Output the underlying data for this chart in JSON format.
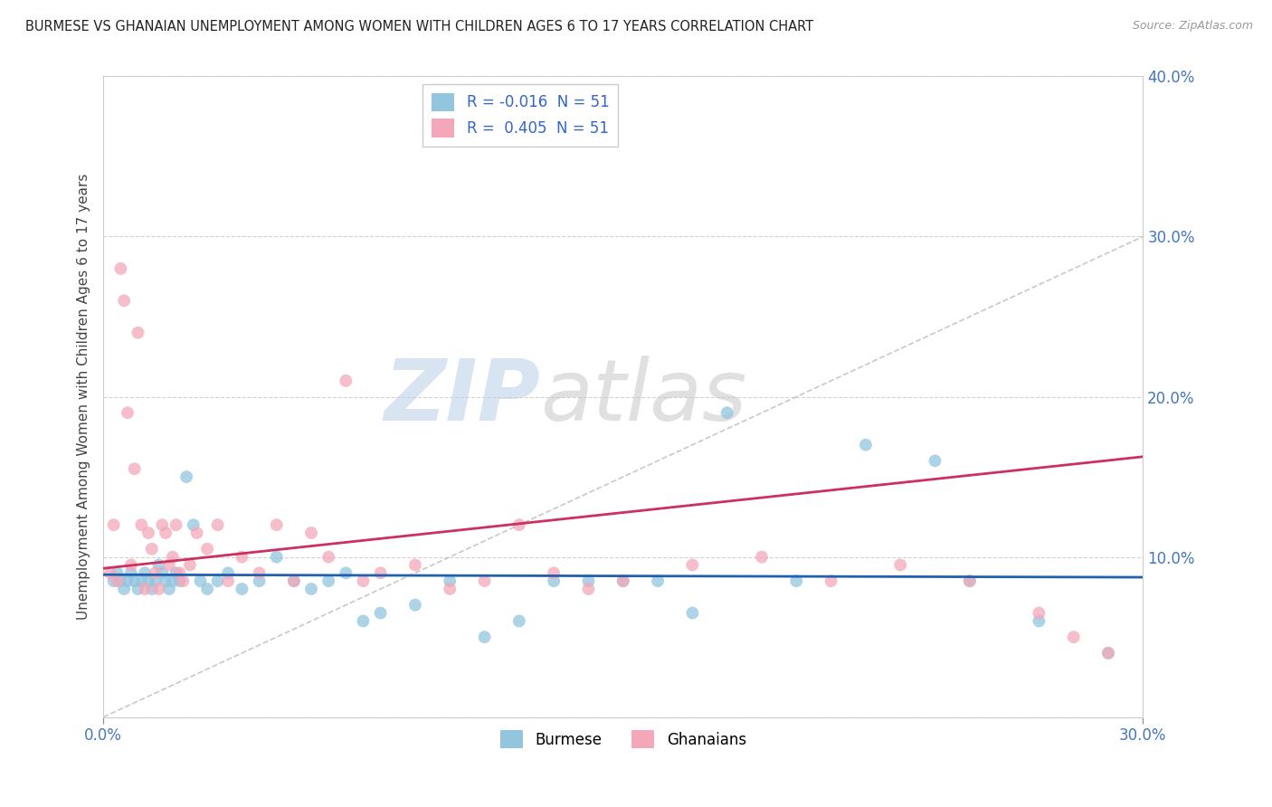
{
  "title": "BURMESE VS GHANAIAN UNEMPLOYMENT AMONG WOMEN WITH CHILDREN AGES 6 TO 17 YEARS CORRELATION CHART",
  "source": "Source: ZipAtlas.com",
  "ylabel": "Unemployment Among Women with Children Ages 6 to 17 years",
  "legend_burmese": "Burmese",
  "legend_ghanaians": "Ghanaians",
  "R_burmese": -0.016,
  "R_ghanaians": 0.405,
  "N_burmese": 51,
  "N_ghanaians": 51,
  "color_burmese": "#92c5de",
  "color_ghanaians": "#f4a7b9",
  "color_burmese_line": "#2060b0",
  "color_ghanaians_line": "#cc3060",
  "color_diagonal": "#bbbbbb",
  "watermark_zip": "ZIP",
  "watermark_atlas": "atlas",
  "xlim": [
    0,
    30
  ],
  "ylim": [
    0,
    40
  ],
  "ytick_positions": [
    0,
    10,
    20,
    30,
    40
  ],
  "ytick_labels": [
    "",
    "10.0%",
    "20.0%",
    "30.0%",
    "40.0%"
  ],
  "xtick_positions": [
    0,
    30
  ],
  "xtick_labels": [
    "0.0%",
    "30.0%"
  ],
  "burmese_x": [
    0.3,
    0.4,
    0.5,
    0.6,
    0.7,
    0.8,
    0.9,
    1.0,
    1.1,
    1.2,
    1.3,
    1.4,
    1.5,
    1.6,
    1.7,
    1.8,
    1.9,
    2.0,
    2.1,
    2.2,
    2.4,
    2.6,
    2.8,
    3.0,
    3.3,
    3.6,
    4.0,
    4.5,
    5.0,
    5.5,
    6.0,
    6.5,
    7.0,
    7.5,
    8.0,
    9.0,
    10.0,
    11.0,
    12.0,
    13.0,
    14.0,
    15.0,
    16.0,
    17.0,
    18.0,
    20.0,
    22.0,
    24.0,
    25.0,
    27.0,
    29.0
  ],
  "burmese_y": [
    8.5,
    9.0,
    8.5,
    8.0,
    8.5,
    9.0,
    8.5,
    8.0,
    8.5,
    9.0,
    8.5,
    8.0,
    8.5,
    9.5,
    9.0,
    8.5,
    8.0,
    8.5,
    9.0,
    8.5,
    15.0,
    12.0,
    8.5,
    8.0,
    8.5,
    9.0,
    8.0,
    8.5,
    10.0,
    8.5,
    8.0,
    8.5,
    9.0,
    6.0,
    6.5,
    7.0,
    8.5,
    5.0,
    6.0,
    8.5,
    8.5,
    8.5,
    8.5,
    6.5,
    19.0,
    8.5,
    17.0,
    16.0,
    8.5,
    6.0,
    4.0
  ],
  "ghanaian_x": [
    0.2,
    0.3,
    0.4,
    0.5,
    0.6,
    0.7,
    0.8,
    0.9,
    1.0,
    1.1,
    1.2,
    1.3,
    1.4,
    1.5,
    1.6,
    1.7,
    1.8,
    1.9,
    2.0,
    2.1,
    2.2,
    2.3,
    2.5,
    2.7,
    3.0,
    3.3,
    3.6,
    4.0,
    4.5,
    5.0,
    5.5,
    6.0,
    6.5,
    7.0,
    7.5,
    8.0,
    9.0,
    10.0,
    11.0,
    12.0,
    13.0,
    14.0,
    15.0,
    17.0,
    19.0,
    21.0,
    23.0,
    25.0,
    27.0,
    28.0,
    29.0
  ],
  "ghanaian_y": [
    9.0,
    12.0,
    8.5,
    28.0,
    26.0,
    19.0,
    9.5,
    15.5,
    24.0,
    12.0,
    8.0,
    11.5,
    10.5,
    9.0,
    8.0,
    12.0,
    11.5,
    9.5,
    10.0,
    12.0,
    9.0,
    8.5,
    9.5,
    11.5,
    10.5,
    12.0,
    8.5,
    10.0,
    9.0,
    12.0,
    8.5,
    11.5,
    10.0,
    21.0,
    8.5,
    9.0,
    9.5,
    8.0,
    8.5,
    12.0,
    9.0,
    8.0,
    8.5,
    9.5,
    10.0,
    8.5,
    9.5,
    8.5,
    6.5,
    5.0,
    4.0
  ]
}
